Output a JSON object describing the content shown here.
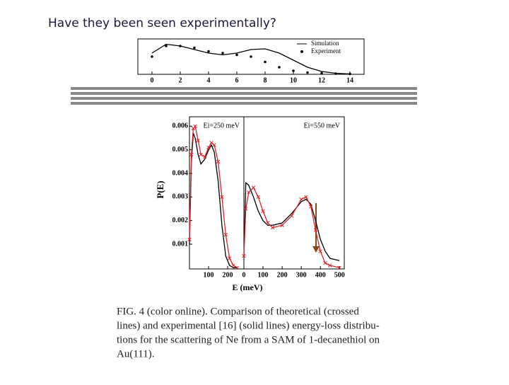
{
  "title": "Have they been seen experimentally?",
  "chart_data": [
    {
      "type": "line",
      "legend": "upper right",
      "x": [
        0,
        1,
        2,
        3,
        4,
        5,
        6,
        7,
        8,
        9,
        10,
        11,
        12,
        13,
        14
      ],
      "xlim": [
        -1,
        15
      ],
      "ylim": [
        0,
        1
      ],
      "xticks": [
        0,
        2,
        4,
        6,
        8,
        10,
        12,
        14
      ],
      "series": [
        {
          "name": "Simulation",
          "color": "#000000",
          "marker": "none",
          "linestyle": "solid",
          "values": [
            0.6,
            0.85,
            0.8,
            0.7,
            0.6,
            0.55,
            0.6,
            0.7,
            0.72,
            0.6,
            0.4,
            0.2,
            0.08,
            0.03,
            0.01
          ]
        },
        {
          "name": "Experiment",
          "color": "#000000",
          "marker": "o",
          "linestyle": "none",
          "values": [
            0.5,
            0.8,
            0.8,
            0.75,
            0.65,
            0.6,
            0.55,
            0.5,
            0.35,
            0.2,
            0.1,
            0.05,
            0.03,
            0.02,
            0.01
          ]
        }
      ]
    },
    {
      "type": "line",
      "annotation": "Ei=250 meV",
      "ylabel": "P(E)",
      "x": [
        0,
        10,
        20,
        30,
        45,
        60,
        80,
        100,
        115,
        130,
        150,
        170,
        190,
        210,
        230,
        250
      ],
      "xlim": [
        0,
        285
      ],
      "ylim": [
        -5e-05,
        0.0064
      ],
      "xticks": [
        100,
        200
      ],
      "yticks": [
        0.001,
        0.002,
        0.003,
        0.004,
        0.005,
        0.006
      ],
      "series": [
        {
          "color": "#000000",
          "marker": "none",
          "linestyle": "solid",
          "values": [
            0.001,
            0.0045,
            0.0057,
            0.0055,
            0.0048,
            0.0044,
            0.0046,
            0.005,
            0.0052,
            0.0049,
            0.0037,
            0.0018,
            0.0005,
            0.0001,
            0.0,
            0.0
          ]
        },
        {
          "color": "#e0202a",
          "marker": "x",
          "linestyle": "solid",
          "values": [
            0.0012,
            0.0048,
            0.0059,
            0.006,
            0.0054,
            0.0048,
            0.0047,
            0.0051,
            0.0053,
            0.0052,
            0.0045,
            0.003,
            0.0014,
            0.0004,
            0.0001,
            0.0
          ]
        }
      ]
    },
    {
      "type": "line",
      "annotation": "Ei=550 meV",
      "xlabel": "E (meV)",
      "x": [
        0,
        10,
        25,
        50,
        75,
        100,
        125,
        150,
        200,
        250,
        300,
        325,
        350,
        375,
        400,
        425,
        450,
        500
      ],
      "xlim": [
        0,
        525
      ],
      "ylim": [
        -5e-05,
        0.0064
      ],
      "xticks": [
        0,
        100,
        200,
        300,
        400,
        500
      ],
      "series": [
        {
          "color": "#000000",
          "marker": "none",
          "linestyle": "solid",
          "values": [
            0.0005,
            0.0036,
            0.0035,
            0.003,
            0.0024,
            0.002,
            0.0018,
            0.0018,
            0.0019,
            0.0023,
            0.0028,
            0.0029,
            0.0027,
            0.002,
            0.0012,
            0.0007,
            0.0004,
            0.0003
          ]
        },
        {
          "color": "#e0202a",
          "marker": "x",
          "linestyle": "solid",
          "values": [
            0.0005,
            0.0025,
            0.0032,
            0.0034,
            0.003,
            0.0024,
            0.0019,
            0.0017,
            0.0018,
            0.0022,
            0.0029,
            0.003,
            0.0026,
            0.0016,
            0.0007,
            0.0002,
            0.0001,
            0.0
          ]
        }
      ]
    }
  ],
  "caption": [
    "FIG. 4 (color online). Comparison of theoretical (crossed",
    "lines) and experimental [16] (solid lines) energy-loss distribu-",
    "tions for the scattering of Ne from a SAM of 1-decanethiol on",
    "Au(111)."
  ]
}
